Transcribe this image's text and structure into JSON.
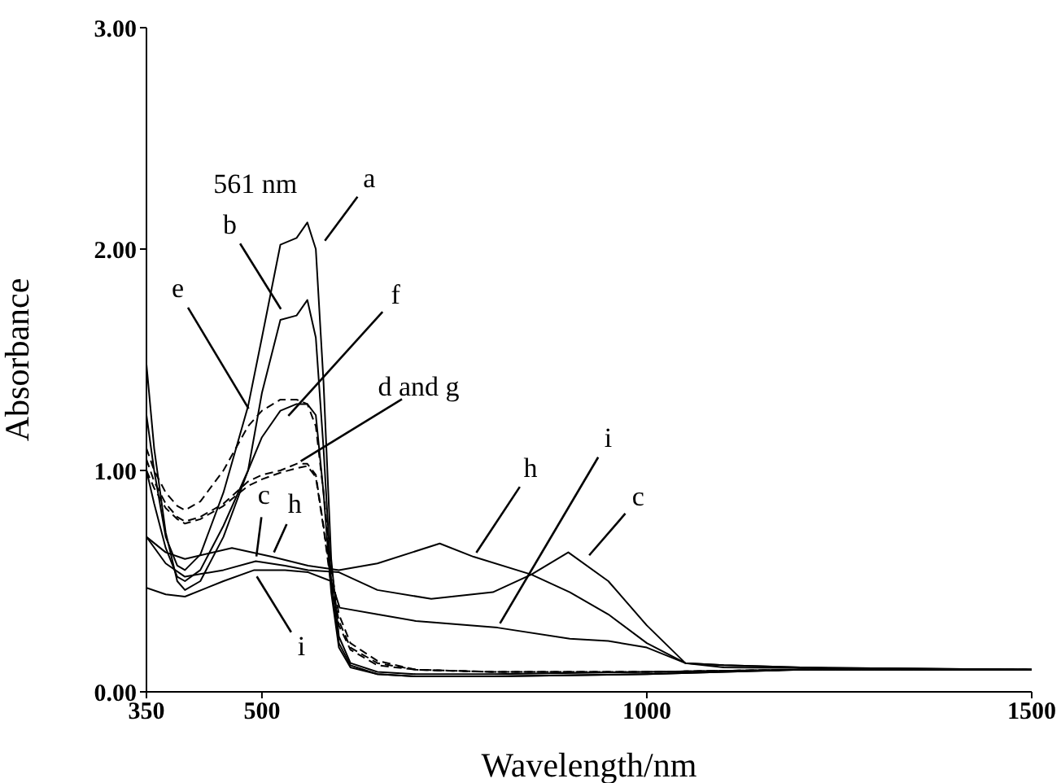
{
  "chart_data": {
    "type": "line",
    "xlabel": "Wavelength/nm",
    "ylabel": "Absorbance",
    "xlim": [
      350,
      1500
    ],
    "ylim": [
      0,
      3
    ],
    "xticks": [
      350,
      500,
      1000,
      1500
    ],
    "yticks": [
      {
        "value": 0,
        "label": "0.00"
      },
      {
        "value": 1,
        "label": "1.00"
      },
      {
        "value": 2,
        "label": "2.00"
      },
      {
        "value": 3,
        "label": "3.00"
      }
    ],
    "marker": "none",
    "series": [
      {
        "color": "#000000",
        "line_style": "solid",
        "x": [
          350,
          360,
          375,
          390,
          400,
          420,
          450,
          482,
          500,
          524,
          545,
          559,
          570,
          580,
          590,
          600,
          615,
          650,
          700,
          800,
          1000,
          1200,
          1500
        ],
        "values": [
          1.25,
          1.0,
          0.7,
          0.57,
          0.55,
          0.62,
          0.9,
          1.29,
          1.6,
          2.02,
          2.05,
          2.12,
          2.0,
          1.4,
          0.6,
          0.25,
          0.13,
          0.09,
          0.08,
          0.08,
          0.09,
          0.1,
          0.1
        ]
      },
      {
        "color": "#000000",
        "line_style": "solid",
        "x": [
          350,
          360,
          375,
          390,
          400,
          420,
          450,
          482,
          500,
          524,
          545,
          559,
          570,
          580,
          590,
          600,
          615,
          650,
          700,
          800,
          1000,
          1200,
          1500
        ],
        "values": [
          1.0,
          0.85,
          0.65,
          0.52,
          0.5,
          0.55,
          0.75,
          1.0,
          1.35,
          1.68,
          1.7,
          1.77,
          1.6,
          1.1,
          0.5,
          0.22,
          0.12,
          0.08,
          0.07,
          0.07,
          0.08,
          0.1,
          0.1
        ]
      },
      {
        "color": "#000000",
        "line_style": "solid",
        "x": [
          350,
          360,
          375,
          390,
          400,
          420,
          450,
          482,
          500,
          524,
          545,
          559,
          570,
          580,
          590,
          600,
          615,
          650,
          700,
          800,
          1000,
          1200,
          1500
        ],
        "values": [
          1.48,
          1.1,
          0.72,
          0.5,
          0.46,
          0.5,
          0.7,
          1.0,
          1.15,
          1.27,
          1.3,
          1.3,
          1.25,
          0.9,
          0.45,
          0.2,
          0.11,
          0.08,
          0.07,
          0.07,
          0.08,
          0.1,
          0.1
        ]
      },
      {
        "color": "#000000",
        "line_style": "dashed",
        "x": [
          350,
          360,
          375,
          390,
          400,
          420,
          450,
          482,
          500,
          524,
          545,
          559,
          570,
          580,
          590,
          600,
          615,
          650,
          700,
          800,
          1000,
          1200,
          1500
        ],
        "values": [
          1.1,
          1.0,
          0.9,
          0.84,
          0.82,
          0.86,
          1.0,
          1.2,
          1.27,
          1.32,
          1.32,
          1.3,
          1.2,
          0.9,
          0.55,
          0.35,
          0.22,
          0.14,
          0.1,
          0.09,
          0.09,
          0.1,
          0.1
        ]
      },
      {
        "color": "#000000",
        "line_style": "dashed",
        "x": [
          350,
          360,
          375,
          390,
          400,
          420,
          450,
          482,
          500,
          524,
          545,
          559,
          570,
          580,
          590,
          600,
          615,
          650,
          700,
          800,
          1000,
          1200,
          1500
        ],
        "values": [
          1.05,
          0.95,
          0.85,
          0.79,
          0.77,
          0.79,
          0.85,
          0.95,
          0.98,
          1.0,
          1.03,
          1.03,
          0.98,
          0.75,
          0.5,
          0.32,
          0.2,
          0.13,
          0.1,
          0.09,
          0.09,
          0.1,
          0.1
        ]
      },
      {
        "color": "#000000",
        "line_style": "dashed",
        "x": [
          350,
          360,
          375,
          390,
          400,
          420,
          450,
          482,
          500,
          524,
          545,
          559,
          570,
          580,
          590,
          600,
          615,
          650,
          700,
          800,
          1000,
          1200,
          1500
        ],
        "values": [
          1.0,
          0.92,
          0.83,
          0.78,
          0.76,
          0.78,
          0.84,
          0.93,
          0.96,
          0.99,
          1.01,
          1.02,
          0.97,
          0.74,
          0.48,
          0.3,
          0.19,
          0.12,
          0.1,
          0.09,
          0.09,
          0.1,
          0.1
        ]
      },
      {
        "color": "#000000",
        "line_style": "solid",
        "x": [
          350,
          375,
          400,
          450,
          492,
          530,
          560,
          600,
          650,
          720,
          800,
          850,
          898,
          950,
          1000,
          1050,
          1100,
          1200,
          1500
        ],
        "values": [
          0.7,
          0.58,
          0.52,
          0.55,
          0.59,
          0.57,
          0.55,
          0.54,
          0.46,
          0.42,
          0.45,
          0.53,
          0.63,
          0.5,
          0.3,
          0.13,
          0.12,
          0.11,
          0.1
        ]
      },
      {
        "color": "#000000",
        "line_style": "solid",
        "x": [
          350,
          375,
          400,
          461,
          513,
          560,
          600,
          650,
          731,
          775,
          850,
          900,
          950,
          1000,
          1050,
          1100,
          1200,
          1500
        ],
        "values": [
          0.7,
          0.63,
          0.6,
          0.65,
          0.61,
          0.57,
          0.55,
          0.58,
          0.67,
          0.61,
          0.53,
          0.45,
          0.35,
          0.22,
          0.13,
          0.12,
          0.11,
          0.1
        ]
      },
      {
        "color": "#000000",
        "line_style": "solid",
        "x": [
          350,
          375,
          400,
          450,
          490,
          530,
          560,
          590,
          601,
          650,
          700,
          806,
          900,
          950,
          1000,
          1050,
          1100,
          1500
        ],
        "values": [
          0.47,
          0.44,
          0.43,
          0.5,
          0.55,
          0.55,
          0.54,
          0.5,
          0.38,
          0.35,
          0.32,
          0.29,
          0.24,
          0.23,
          0.2,
          0.13,
          0.11,
          0.1
        ]
      }
    ],
    "annotations": [
      {
        "text": "561 nm",
        "x": 561,
        "y": 2.12
      },
      {
        "text": "a",
        "x": 578,
        "y": 2.02
      },
      {
        "text": "b",
        "x": 528,
        "y": 1.71
      },
      {
        "text": "e",
        "x": 486,
        "y": 1.26
      },
      {
        "text": "f",
        "x": 530,
        "y": 1.23
      },
      {
        "text": "d and g",
        "x": 545,
        "y": 1.03
      },
      {
        "text": "c",
        "x": 492,
        "y": 0.59
      },
      {
        "text": "h",
        "x": 513,
        "y": 0.61
      },
      {
        "text": "i",
        "x": 490,
        "y": 0.54
      },
      {
        "text": "h",
        "x": 775,
        "y": 0.61
      },
      {
        "text": "i",
        "x": 806,
        "y": 0.29
      },
      {
        "text": "c",
        "x": 921,
        "y": 0.6
      }
    ]
  }
}
